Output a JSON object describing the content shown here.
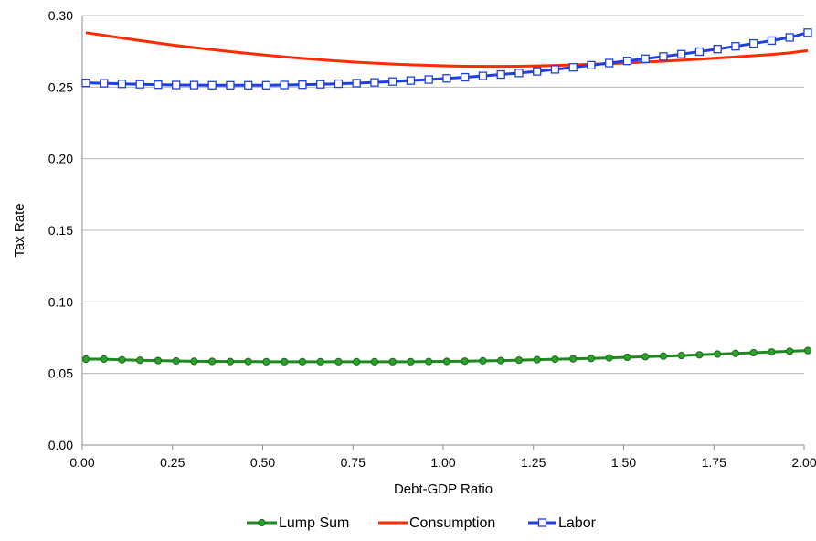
{
  "chart_data": {
    "type": "line",
    "xlabel": "Debt-GDP Ratio",
    "ylabel": "Tax Rate",
    "xlim": [
      0.0,
      2.0
    ],
    "ylim": [
      0.0,
      0.3
    ],
    "x_ticks": [
      "0.00",
      "0.25",
      "0.50",
      "0.75",
      "1.00",
      "1.25",
      "1.50",
      "1.75",
      "2.00"
    ],
    "y_ticks": [
      "0.00",
      "0.05",
      "0.10",
      "0.15",
      "0.20",
      "0.25",
      "0.30"
    ],
    "grid": "horizontal",
    "legend_position": "bottom",
    "x": [
      0.01,
      0.06,
      0.11,
      0.16,
      0.21,
      0.26,
      0.31,
      0.36,
      0.41,
      0.46,
      0.51,
      0.56,
      0.61,
      0.66,
      0.71,
      0.76,
      0.81,
      0.86,
      0.91,
      0.96,
      1.01,
      1.06,
      1.11,
      1.16,
      1.21,
      1.26,
      1.31,
      1.36,
      1.41,
      1.46,
      1.51,
      1.56,
      1.61,
      1.66,
      1.71,
      1.76,
      1.81,
      1.86,
      1.91,
      1.96,
      2.01
    ],
    "series": [
      {
        "name": "Lump Sum",
        "color": "#1e8a1e",
        "marker": "circle",
        "values": [
          0.06,
          0.06,
          0.0595,
          0.0592,
          0.059,
          0.0587,
          0.0585,
          0.0584,
          0.0583,
          0.0583,
          0.0582,
          0.0582,
          0.0582,
          0.0582,
          0.0582,
          0.0582,
          0.0582,
          0.0582,
          0.0582,
          0.0583,
          0.0584,
          0.0586,
          0.0588,
          0.059,
          0.0593,
          0.0596,
          0.0599,
          0.0602,
          0.0605,
          0.0609,
          0.0613,
          0.0617,
          0.0621,
          0.0625,
          0.063,
          0.0635,
          0.064,
          0.0645,
          0.065,
          0.0655,
          0.066
        ]
      },
      {
        "name": "Consumption",
        "color": "#ff2a00",
        "marker": "none",
        "values": [
          0.288,
          0.2862,
          0.2843,
          0.2825,
          0.2808,
          0.2791,
          0.2776,
          0.2762,
          0.2748,
          0.2735,
          0.2723,
          0.2711,
          0.2701,
          0.2691,
          0.2682,
          0.2674,
          0.2667,
          0.2661,
          0.2656,
          0.2652,
          0.2648,
          0.2646,
          0.2645,
          0.2645,
          0.2646,
          0.2648,
          0.2651,
          0.2655,
          0.2659,
          0.2664,
          0.2669,
          0.2675,
          0.2681,
          0.2688,
          0.2695,
          0.2703,
          0.2711,
          0.2719,
          0.2728,
          0.2739,
          0.2755
        ]
      },
      {
        "name": "Labor",
        "color": "#1f3fe0",
        "marker": "square",
        "values": [
          0.253,
          0.2527,
          0.2523,
          0.252,
          0.2517,
          0.2515,
          0.2514,
          0.2513,
          0.2513,
          0.2513,
          0.2513,
          0.2515,
          0.2517,
          0.252,
          0.2524,
          0.2528,
          0.2533,
          0.2539,
          0.2546,
          0.2553,
          0.2561,
          0.2569,
          0.2578,
          0.2588,
          0.2599,
          0.261,
          0.2624,
          0.2638,
          0.2653,
          0.2668,
          0.2683,
          0.2698,
          0.2714,
          0.273,
          0.2748,
          0.2766,
          0.2785,
          0.2805,
          0.2825,
          0.2847,
          0.288
        ]
      }
    ]
  }
}
